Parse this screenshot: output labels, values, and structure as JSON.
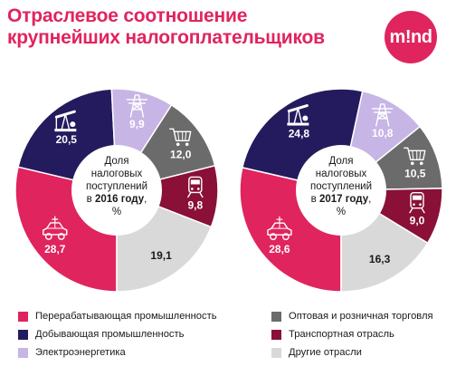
{
  "title": {
    "line1": "Отраслевое соотношение",
    "line2": "крупнейших налогоплательщиков"
  },
  "logo": {
    "text": "m!nd",
    "color": "#e0245e"
  },
  "center_label": {
    "line1": "Доля",
    "line2": "налоговых",
    "line3": "поступлений",
    "line4_prefix": "в",
    "line4_suffix": ",",
    "line5": "%"
  },
  "chart_data": [
    {
      "type": "pie",
      "year_label": "2016 году",
      "series": [
        {
          "name": "Перерабатывающая промышленность",
          "value": 28.7,
          "label": "28,7",
          "icon": "car-icon"
        },
        {
          "name": "Добывающая промышленность",
          "value": 20.5,
          "label": "20,5",
          "icon": "oil-pump-icon"
        },
        {
          "name": "Электроэнергетика",
          "value": 9.9,
          "label": "9,9",
          "icon": "power-tower-icon"
        },
        {
          "name": "Оптовая и розничная торговля",
          "value": 12.0,
          "label": "12,0",
          "icon": "shopping-cart-icon"
        },
        {
          "name": "Транспортная отрасль",
          "value": 9.8,
          "label": "9,8",
          "icon": "train-icon"
        },
        {
          "name": "Другие отрасли",
          "value": 19.1,
          "label": "19,1",
          "icon": ""
        }
      ]
    },
    {
      "type": "pie",
      "year_label": "2017 году",
      "series": [
        {
          "name": "Перерабатывающая промышленность",
          "value": 28.6,
          "label": "28,6",
          "icon": "car-icon"
        },
        {
          "name": "Добывающая промышленность",
          "value": 24.8,
          "label": "24,8",
          "icon": "oil-pump-icon"
        },
        {
          "name": "Электроэнергетика",
          "value": 10.8,
          "label": "10,8",
          "icon": "power-tower-icon"
        },
        {
          "name": "Оптовая и розничная торговля",
          "value": 10.5,
          "label": "10,5",
          "icon": "shopping-cart-icon"
        },
        {
          "name": "Транспортная отрасль",
          "value": 9.0,
          "label": "9,0",
          "icon": "train-icon"
        },
        {
          "name": "Другие отрасли",
          "value": 16.3,
          "label": "16,3",
          "icon": ""
        }
      ]
    }
  ],
  "colors": {
    "processing": "#e0245e",
    "mining": "#241b5e",
    "energy": "#c7b5e6",
    "trade": "#6b6b6b",
    "transport": "#8a1038",
    "other": "#d9d9d9"
  },
  "legend": [
    {
      "label": "Перерабатывающая промышленность",
      "color": "#e0245e"
    },
    {
      "label": "Добывающая промышленность",
      "color": "#241b5e"
    },
    {
      "label": "Электроэнергетика",
      "color": "#c7b5e6"
    },
    {
      "label": "Оптовая и розничная торговля",
      "color": "#6b6b6b"
    },
    {
      "label": "Транспортная отрасль",
      "color": "#8a1038"
    },
    {
      "label": "Другие отрасли",
      "color": "#d9d9d9"
    }
  ]
}
